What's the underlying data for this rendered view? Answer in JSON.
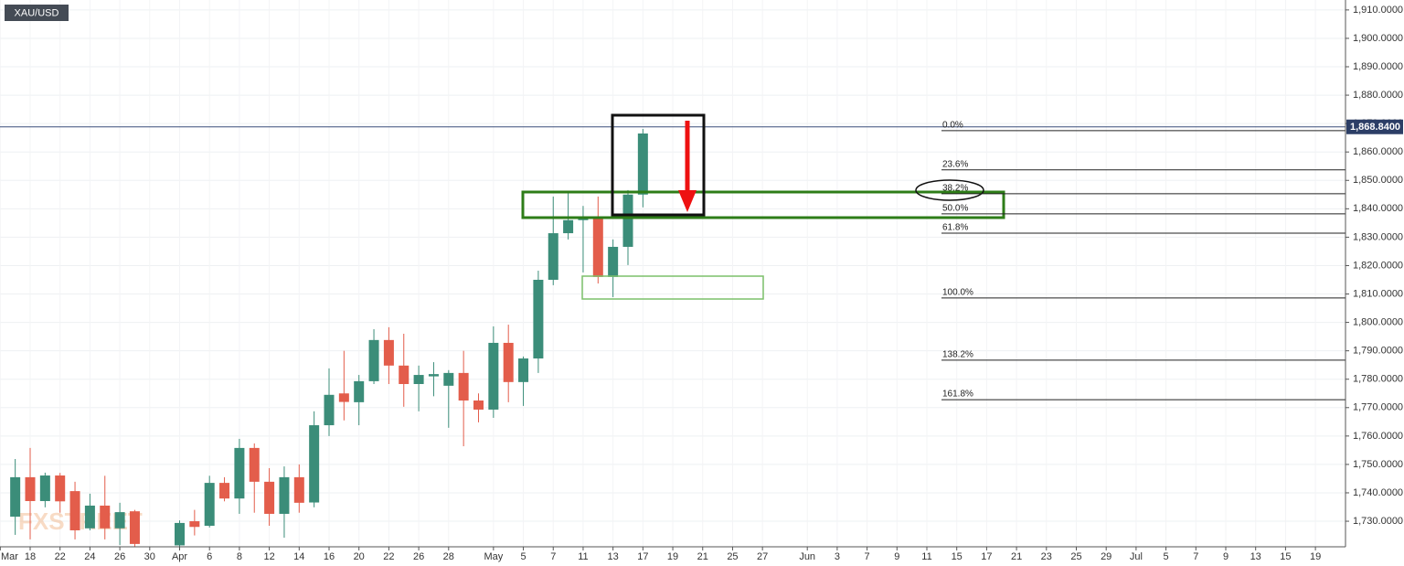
{
  "chart_data": {
    "type": "candlestick",
    "title": "XAU/USD",
    "watermark": "FXSTREET",
    "up_color": "#3b8d79",
    "down_color": "#e35d4b",
    "grid": true,
    "categories": [
      "Mar",
      null,
      "18",
      null,
      "22",
      null,
      "24",
      null,
      "26",
      null,
      "30",
      null,
      "Apr",
      null,
      "6",
      null,
      "8",
      null,
      "12",
      null,
      "14",
      null,
      "16",
      null,
      "20",
      null,
      "22",
      null,
      "26",
      null,
      "28",
      null,
      null,
      "May",
      null,
      "5",
      null,
      "7",
      null,
      "11",
      null,
      "13",
      null,
      "17",
      null,
      "19",
      null,
      "21",
      null,
      "25",
      null,
      "27",
      null,
      null,
      "Jun",
      null,
      "3",
      null,
      "7",
      null,
      "9",
      null,
      "11",
      null,
      "15",
      null,
      "17",
      null,
      "21",
      null,
      "23",
      null,
      "25",
      null,
      "29",
      null,
      "Jul",
      null,
      "5",
      null,
      "7",
      null,
      "9",
      null,
      "13",
      null,
      "15",
      null,
      "19",
      null
    ],
    "open": [
      null,
      1731.6,
      1745.5,
      1737.1,
      1746.1,
      1740.6,
      1727.5,
      1735.5,
      1727.5,
      1733.5,
      null,
      null,
      1721.5,
      1730,
      1728.4,
      1743.5,
      1738,
      1755.8,
      1743.9,
      1732.6,
      1745.5,
      1736.6,
      1763.8,
      1775,
      1771.9,
      1779.3,
      1793.8,
      1784.8,
      1778.3,
      1781,
      1777.7,
      1782.2,
      1772.5,
      1769.3,
      1792.8,
      1779,
      1787.3,
      1815,
      1831.4,
      1836,
      1837,
      1816,
      1826.6,
      1845,
      null,
      null,
      null,
      null,
      null,
      null,
      null,
      null,
      null,
      null,
      null,
      null,
      null,
      null,
      null,
      null,
      null,
      null,
      null,
      null,
      null,
      null,
      null,
      null,
      null,
      null,
      null,
      null,
      null,
      null,
      null,
      null,
      null,
      null,
      null,
      null,
      null,
      null,
      null,
      null,
      null,
      null,
      null,
      null,
      null,
      null
    ],
    "high": [
      null,
      1751.9,
      1755.8,
      1747.1,
      1747,
      1743.9,
      1739.7,
      1746,
      1736.5,
      1734,
      null,
      null,
      1730.3,
      1734,
      1746,
      1745.5,
      1759,
      1757.4,
      1748.7,
      1749.3,
      1750,
      1768.7,
      1783.8,
      1790,
      1781.5,
      1797.6,
      1798.3,
      1796,
      1784.8,
      1786,
      1783.2,
      1790,
      1775,
      1798.6,
      1799.2,
      1788,
      1818.2,
      1844.3,
      1846,
      1841,
      1844.3,
      1829.2,
      1846.6,
      1868.1,
      null,
      null,
      null,
      null,
      null,
      null,
      null,
      null,
      null,
      null,
      null,
      null,
      null,
      null,
      null,
      null,
      null,
      null,
      null,
      null,
      null,
      null,
      null,
      null,
      null,
      null,
      null,
      null,
      null,
      null,
      null,
      null,
      null,
      null,
      null,
      null,
      null,
      null,
      null,
      null,
      null,
      null,
      null,
      null,
      null,
      null
    ],
    "low": [
      null,
      1725.2,
      1723.6,
      1734.9,
      1733,
      1723.6,
      1726.8,
      1723.6,
      1721.6,
      1721,
      null,
      null,
      1721,
      1725,
      1727.8,
      1737,
      1732.6,
      1733,
      1728.4,
      1724.2,
      1733,
      1734.9,
      1760,
      1765.5,
      1763.8,
      1778.3,
      1778.3,
      1770.3,
      1768.7,
      1774,
      1762.9,
      1756.4,
      1764.8,
      1766.4,
      1771.9,
      1770.6,
      1782.2,
      1813.1,
      1829.2,
      1817.6,
      1813.7,
      1808.9,
      1820.2,
      1840.5,
      null,
      null,
      null,
      null,
      null,
      null,
      null,
      null,
      null,
      null,
      null,
      null,
      null,
      null,
      null,
      null,
      null,
      null,
      null,
      null,
      null,
      null,
      null,
      null,
      null,
      null,
      null,
      null,
      null,
      null,
      null,
      null,
      null,
      null,
      null,
      null,
      null,
      null,
      null,
      null,
      null,
      null,
      null,
      null,
      null,
      null
    ],
    "close": [
      null,
      1745.5,
      1737.1,
      1746.1,
      1737,
      1726.8,
      1735.5,
      1727.5,
      1733.2,
      1722,
      null,
      null,
      1729.4,
      1728,
      1743.5,
      1738,
      1755.8,
      1743.9,
      1732.6,
      1745.5,
      1736.5,
      1763.8,
      1774.5,
      1772,
      1779.3,
      1793.8,
      1784.8,
      1778.3,
      1781.5,
      1781.8,
      1782.2,
      1772.5,
      1769.3,
      1792.8,
      1779,
      1787.3,
      1815,
      1831.4,
      1836,
      1837,
      1816,
      1826.6,
      1845,
      1866.5,
      null,
      null,
      null,
      null,
      null,
      null,
      null,
      null,
      null,
      null,
      null,
      null,
      null,
      null,
      null,
      null,
      null,
      null,
      null,
      null,
      null,
      null,
      null,
      null,
      null,
      null,
      null,
      null,
      null,
      null,
      null,
      null,
      null,
      null,
      null,
      null,
      null,
      null,
      null,
      null,
      null,
      null,
      null,
      null,
      null,
      null
    ],
    "ylim": [
      1721,
      1913.5
    ],
    "yticks": [
      {
        "value": 1730,
        "label": "1,730.0000"
      },
      {
        "value": 1740,
        "label": "1,740.0000"
      },
      {
        "value": 1750,
        "label": "1,750.0000"
      },
      {
        "value": 1760,
        "label": "1,760.0000"
      },
      {
        "value": 1770,
        "label": "1,770.0000"
      },
      {
        "value": 1780,
        "label": "1,780.0000"
      },
      {
        "value": 1790,
        "label": "1,790.0000"
      },
      {
        "value": 1800,
        "label": "1,800.0000"
      },
      {
        "value": 1810,
        "label": "1,810.0000"
      },
      {
        "value": 1820,
        "label": "1,820.0000"
      },
      {
        "value": 1830,
        "label": "1,830.0000"
      },
      {
        "value": 1840,
        "label": "1,840.0000"
      },
      {
        "value": 1850,
        "label": "1,850.0000"
      },
      {
        "value": 1860,
        "label": "1,860.0000"
      },
      {
        "value": 1870,
        "label": "1,870.0000"
      },
      {
        "value": 1880,
        "label": "1,880.0000"
      },
      {
        "value": 1890,
        "label": "1,890.0000"
      },
      {
        "value": 1900,
        "label": "1,900.0000"
      },
      {
        "value": 1910,
        "label": "1,910.0000"
      }
    ],
    "last_price": {
      "value": 1868.84,
      "label": "1,868.8400"
    },
    "fib_levels": [
      {
        "label": "0.0%",
        "value": 1867.5
      },
      {
        "label": "23.6%",
        "value": 1853.7
      },
      {
        "label": "38.2%",
        "value": 1845.3
      },
      {
        "label": "50.0%",
        "value": 1838.2
      },
      {
        "label": "61.8%",
        "value": 1831.4
      },
      {
        "label": "100.0%",
        "value": 1808.6
      },
      {
        "label": "138.2%",
        "value": 1786.7
      },
      {
        "label": "161.8%",
        "value": 1772.8
      }
    ]
  }
}
